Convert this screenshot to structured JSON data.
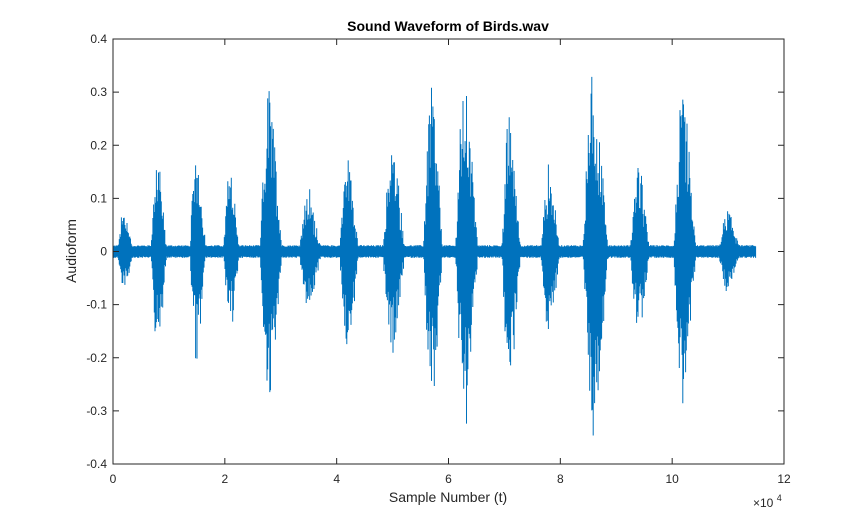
{
  "chart_data": {
    "type": "line",
    "title": "Sound Waveform of Birds.wav",
    "xlabel": "Sample Number (t)",
    "ylabel": "Audioform",
    "xlim": [
      0,
      12
    ],
    "ylim": [
      -0.4,
      0.4
    ],
    "x_multiplier_label": "×10",
    "x_multiplier_exp": "4",
    "xticks": [
      0,
      2,
      4,
      6,
      8,
      10,
      12
    ],
    "xtick_labels": [
      "0",
      "2",
      "4",
      "6",
      "8",
      "10",
      "12"
    ],
    "yticks": [
      -0.4,
      -0.3,
      -0.2,
      -0.1,
      0,
      0.1,
      0.2,
      0.3,
      0.4
    ],
    "ytick_labels": [
      "-0.4",
      "-0.3",
      "-0.2",
      "-0.1",
      "0",
      "0.1",
      "0.2",
      "0.3",
      "0.4"
    ],
    "grid": false,
    "series": [
      {
        "color": "#0072BD",
        "x_start": 0,
        "x_end": 11.5,
        "noise_floor": 0.012,
        "bursts": [
          {
            "x": 0.2,
            "width": 0.25,
            "max": 0.09,
            "min": -0.09
          },
          {
            "x": 0.8,
            "width": 0.25,
            "max": 0.21,
            "min": -0.21
          },
          {
            "x": 1.5,
            "width": 0.25,
            "max": 0.23,
            "min": -0.23
          },
          {
            "x": 2.1,
            "width": 0.25,
            "max": 0.18,
            "min": -0.17
          },
          {
            "x": 2.8,
            "width": 0.35,
            "max": 0.34,
            "min": -0.33
          },
          {
            "x": 3.5,
            "width": 0.35,
            "max": 0.13,
            "min": -0.13
          },
          {
            "x": 4.2,
            "width": 0.3,
            "max": 0.22,
            "min": -0.23
          },
          {
            "x": 5.0,
            "width": 0.35,
            "max": 0.23,
            "min": -0.23
          },
          {
            "x": 5.7,
            "width": 0.3,
            "max": 0.36,
            "min": -0.35
          },
          {
            "x": 6.3,
            "width": 0.35,
            "max": 0.38,
            "min": -0.39
          },
          {
            "x": 7.1,
            "width": 0.3,
            "max": 0.29,
            "min": -0.3
          },
          {
            "x": 7.8,
            "width": 0.3,
            "max": 0.18,
            "min": -0.18
          },
          {
            "x": 8.6,
            "width": 0.4,
            "max": 0.38,
            "min": -0.38
          },
          {
            "x": 9.4,
            "width": 0.3,
            "max": 0.19,
            "min": -0.19
          },
          {
            "x": 10.2,
            "width": 0.35,
            "max": 0.33,
            "min": -0.33
          },
          {
            "x": 11.0,
            "width": 0.35,
            "max": 0.09,
            "min": -0.09
          }
        ]
      }
    ]
  }
}
